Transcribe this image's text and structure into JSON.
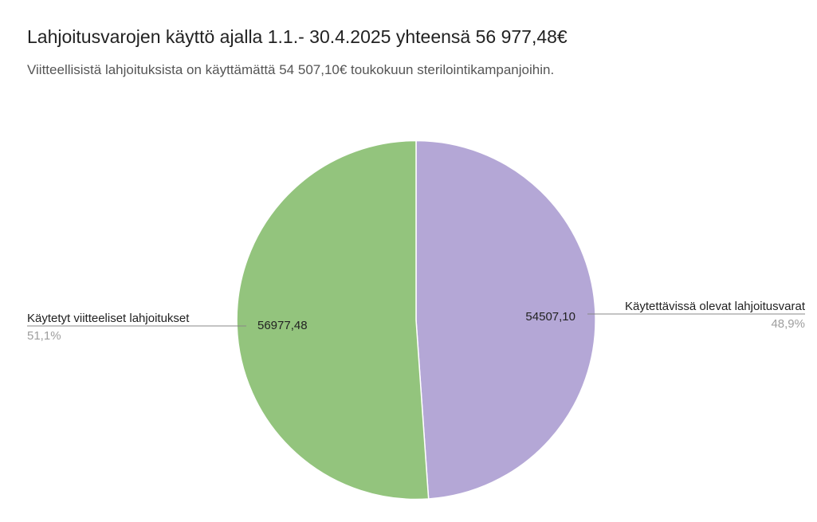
{
  "chart_data": {
    "type": "pie",
    "title": "Lahjoitusvarojen käyttö ajalla 1.1.- 30.4.2025 yhteensä 56 977,48€",
    "subtitle": "Viitteellisistä lahjoituksista on käyttämättä 54 507,10€ toukokuun sterilointikampanjoihin.",
    "slices": [
      {
        "name": "Käytettävissä olevat lahjoitusvarat",
        "value": 54507.1,
        "value_label": "54507,10",
        "percent_label": "48,9%",
        "color": "#b4a7d6"
      },
      {
        "name": "Käytetyt viitteeliset lahjoitukset",
        "value": 56977.48,
        "value_label": "56977,48",
        "percent_label": "51,1%",
        "color": "#93c47d"
      }
    ],
    "start_angle": "top",
    "direction": "clockwise",
    "legend_placement": "outside labels with leader lines"
  }
}
